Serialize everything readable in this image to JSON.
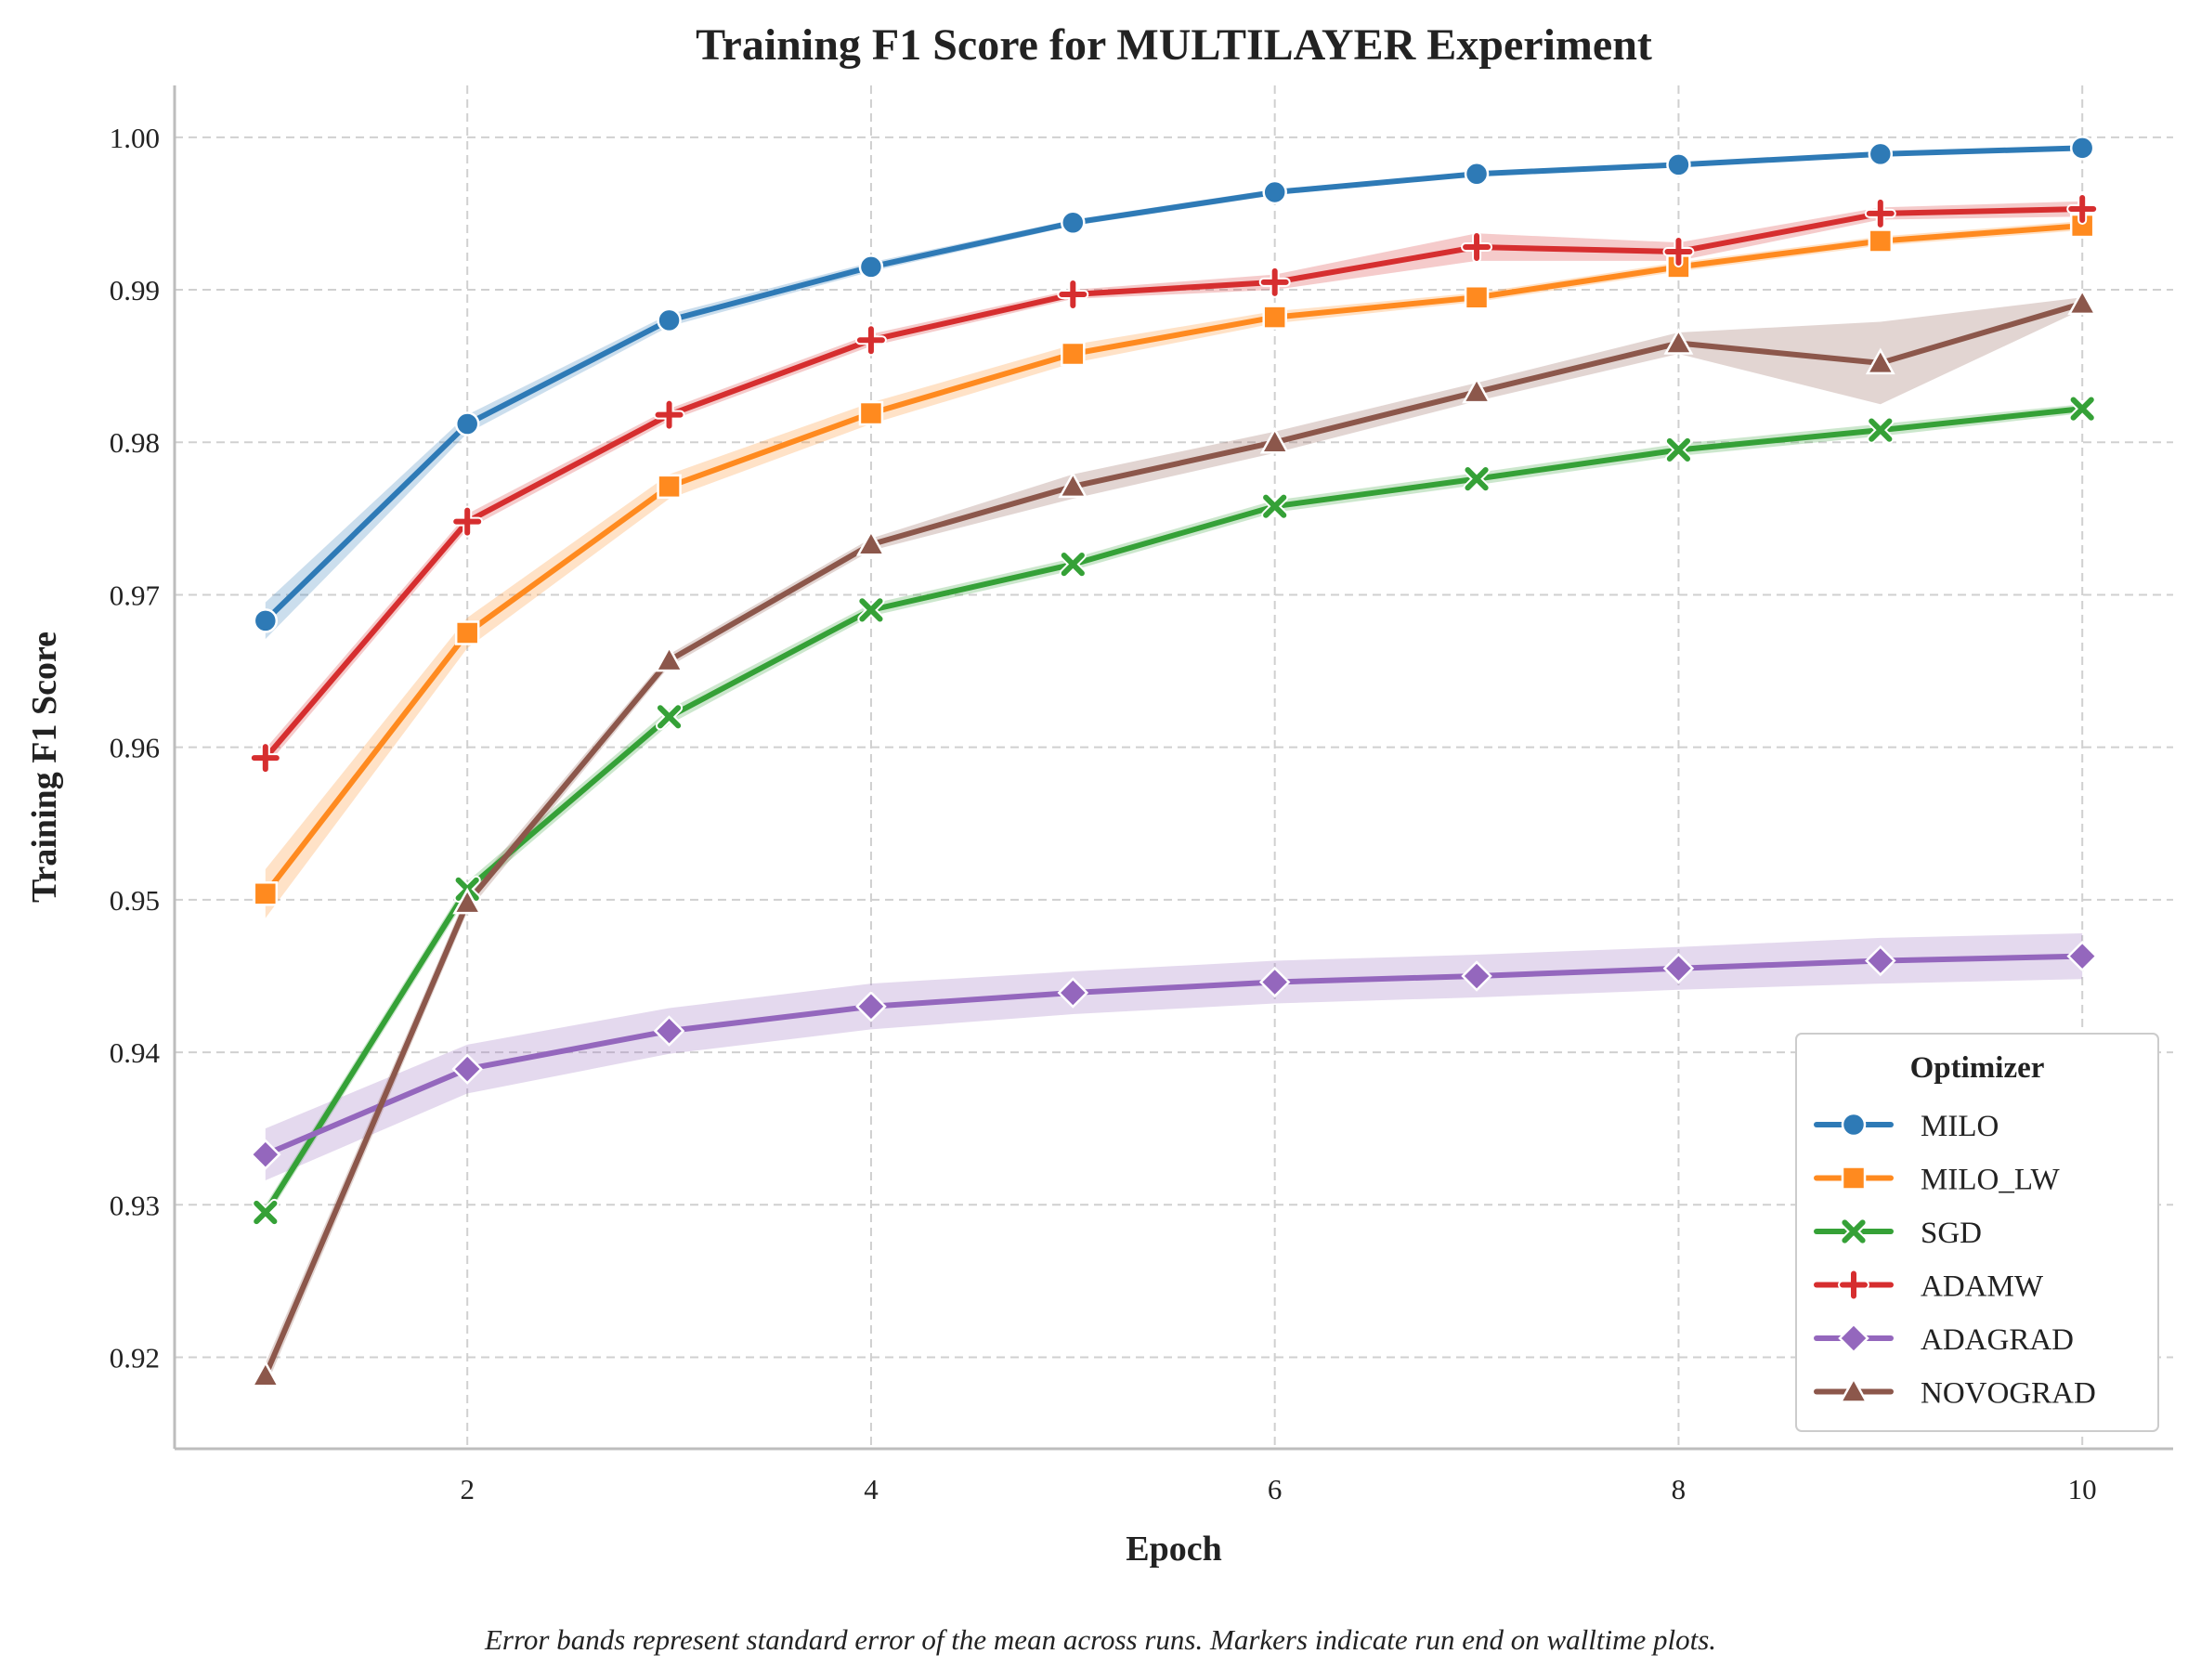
{
  "chart_data": {
    "type": "line",
    "title": "Training F1 Score for MULTILAYER Experiment",
    "xlabel": "Epoch",
    "ylabel": "Training F1 Score",
    "caption": "Error bands represent standard error of the mean across runs. Markers indicate run end on walltime plots.",
    "x": [
      1,
      2,
      3,
      4,
      5,
      6,
      7,
      8,
      9,
      10
    ],
    "xlim": [
      0.55,
      10.45
    ],
    "ylim": [
      0.914,
      1.0034
    ],
    "xticks": [
      2,
      4,
      6,
      8,
      10
    ],
    "xtick_labels": [
      "2",
      "4",
      "6",
      "8",
      "10"
    ],
    "yticks": [
      0.92,
      0.93,
      0.94,
      0.95,
      0.96,
      0.97,
      0.98,
      0.99,
      1.0
    ],
    "ytick_labels": [
      "0.92",
      "0.93",
      "0.94",
      "0.95",
      "0.96",
      "0.97",
      "0.98",
      "0.99",
      "1.00"
    ],
    "grid": true,
    "legend": {
      "title": "Optimizer",
      "placement": "lower-right"
    },
    "series": [
      {
        "name": "MILO",
        "color": "#2e7ab6",
        "marker": "circle",
        "values": [
          0.9683,
          0.9812,
          0.988,
          0.9915,
          0.9944,
          0.9964,
          0.9976,
          0.9982,
          0.9989,
          0.9993
        ],
        "err": [
          0.0012,
          0.0006,
          0.0004,
          0.0003,
          0.0002,
          0.0002,
          0.0001,
          0.0001,
          0.0001,
          0.0001
        ]
      },
      {
        "name": "MILO_LW",
        "color": "#ff8a1f",
        "marker": "square",
        "values": [
          0.9504,
          0.9675,
          0.9771,
          0.9819,
          0.9858,
          0.9882,
          0.9895,
          0.9915,
          0.9932,
          0.9942
        ],
        "err": [
          0.0016,
          0.001,
          0.0008,
          0.0007,
          0.0006,
          0.0004,
          0.0003,
          0.0003,
          0.0003,
          0.0003
        ]
      },
      {
        "name": "SGD",
        "color": "#35a137",
        "marker": "x",
        "values": [
          0.9295,
          0.9507,
          0.962,
          0.969,
          0.972,
          0.9758,
          0.9776,
          0.9795,
          0.9808,
          0.9822
        ],
        "err": [
          0.0005,
          0.0005,
          0.0005,
          0.0004,
          0.0004,
          0.0004,
          0.0004,
          0.0004,
          0.0004,
          0.0003
        ]
      },
      {
        "name": "ADAMW",
        "color": "#d62e2f",
        "marker": "plus",
        "values": [
          0.9593,
          0.9748,
          0.9818,
          0.9867,
          0.9897,
          0.9905,
          0.9928,
          0.9925,
          0.995,
          0.9953
        ],
        "err": [
          0.0006,
          0.0005,
          0.0004,
          0.0004,
          0.0003,
          0.0005,
          0.0009,
          0.0006,
          0.0004,
          0.0005
        ]
      },
      {
        "name": "ADAGRAD",
        "color": "#9467bd",
        "marker": "diamond",
        "values": [
          0.9333,
          0.9389,
          0.9414,
          0.943,
          0.9439,
          0.9446,
          0.945,
          0.9455,
          0.946,
          0.9463
        ],
        "err": [
          0.0017,
          0.0016,
          0.0015,
          0.0015,
          0.0014,
          0.0014,
          0.0014,
          0.0014,
          0.0015,
          0.0015
        ]
      },
      {
        "name": "NOVOGRAD",
        "color": "#8c574b",
        "marker": "triangle",
        "values": [
          0.9188,
          0.9498,
          0.9657,
          0.9733,
          0.9771,
          0.98,
          0.9833,
          0.9865,
          0.9852,
          0.9891
        ],
        "err": [
          0.0008,
          0.0006,
          0.0004,
          0.0004,
          0.0008,
          0.0007,
          0.0006,
          0.0007,
          0.0027,
          0.0004
        ]
      }
    ]
  }
}
